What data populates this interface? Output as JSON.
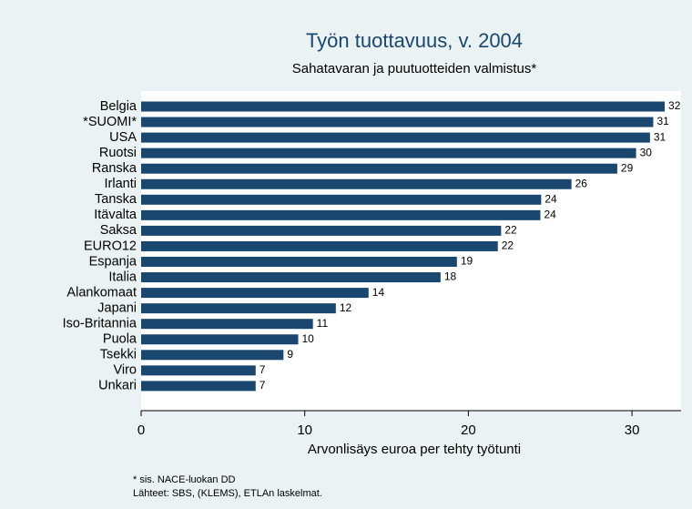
{
  "chart_data": {
    "type": "hbar",
    "title": "Työn tuottavuus, v. 2004",
    "subtitle": "Sahatavaran ja puutuotteiden valmistus*",
    "xlabel": "Arvonlisäys euroa per tehty työtunti",
    "notes": [
      "* sis. NACE-luokan DD",
      "Lähteet: SBS, (KLEMS), ETLAn laskelmat."
    ],
    "categories": [
      "Belgia",
      "*SUOMI*",
      "USA",
      "Ruotsi",
      "Ranska",
      "Irlanti",
      "Tanska",
      "Itävalta",
      "Saksa",
      "EURO12",
      "Espanja",
      "Italia",
      "Alankomaat",
      "Japani",
      "Iso-Britannia",
      "Puola",
      "Tsekki",
      "Viro",
      "Unkari"
    ],
    "values": [
      32.0,
      31.3,
      31.1,
      30.25,
      29.1,
      26.3,
      24.45,
      24.4,
      22.0,
      21.8,
      19.3,
      18.3,
      13.9,
      11.9,
      10.5,
      9.6,
      8.7,
      7.0,
      7.0
    ],
    "value_labels": [
      "32",
      "31",
      "31",
      "30",
      "29",
      "26",
      "24",
      "24",
      "22",
      "22",
      "19",
      "18",
      "14",
      "12",
      "11",
      "10",
      "9",
      "7",
      "7"
    ],
    "color": "#1a476f",
    "xlim": [
      0,
      33
    ],
    "xticks": [
      0,
      10,
      20,
      30
    ]
  }
}
